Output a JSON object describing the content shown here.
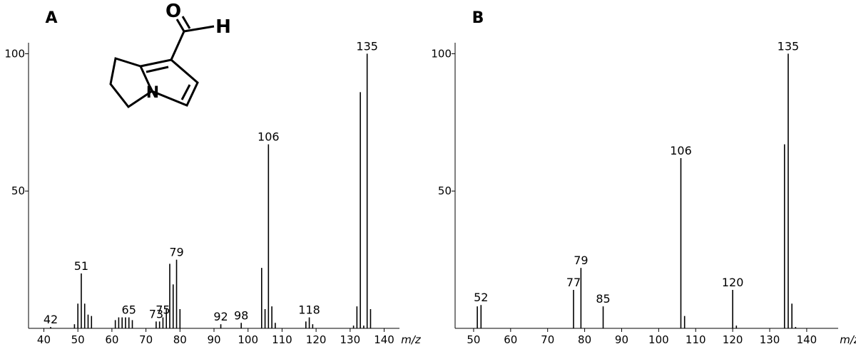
{
  "chart_data": [
    {
      "type": "bar",
      "title": "A",
      "xlabel": "m/z",
      "x": [
        42,
        49,
        50,
        51,
        52,
        53,
        54,
        61,
        62,
        63,
        64,
        65,
        66,
        73,
        74,
        75,
        76,
        77,
        78,
        79,
        80,
        92,
        98,
        104,
        105,
        106,
        107,
        108,
        117,
        118,
        119,
        131,
        132,
        133,
        134,
        135,
        136
      ],
      "values": [
        0.5,
        1.5,
        9,
        20,
        9,
        5,
        4.5,
        3,
        4,
        4,
        4,
        4,
        3,
        2.5,
        2.5,
        4,
        7,
        23.5,
        16,
        25,
        7,
        1.5,
        2,
        22,
        7,
        67,
        8,
        2,
        2.5,
        4,
        1.5,
        1,
        8,
        86,
        1,
        100,
        7
      ],
      "peak_labels": [
        42,
        51,
        65,
        73,
        75,
        79,
        92,
        98,
        106,
        118,
        135
      ],
      "xlim": [
        35.5,
        144.5
      ],
      "xticks": [
        40,
        50,
        60,
        70,
        80,
        90,
        100,
        110,
        120,
        130,
        140
      ],
      "ylim": [
        0,
        104
      ],
      "yticks": [
        50,
        100
      ],
      "color": "#000000",
      "structure": {
        "atoms": [
          "O",
          "H",
          "N"
        ]
      }
    },
    {
      "type": "bar",
      "title": "B",
      "xlabel": "m/z",
      "x": [
        51,
        52,
        77,
        79,
        85,
        106,
        107,
        120,
        121,
        134,
        135,
        136,
        137
      ],
      "values": [
        8,
        8.5,
        14,
        22,
        8,
        62,
        4.5,
        14,
        1,
        67,
        100,
        9,
        0.5
      ],
      "peak_labels": [
        52,
        77,
        79,
        85,
        106,
        120,
        135
      ],
      "xlim": [
        45,
        148.5
      ],
      "xticks": [
        50,
        60,
        70,
        80,
        90,
        100,
        110,
        120,
        130,
        140
      ],
      "ylim": [
        0,
        104
      ],
      "yticks": [
        50,
        100
      ],
      "color": "#000000"
    }
  ]
}
